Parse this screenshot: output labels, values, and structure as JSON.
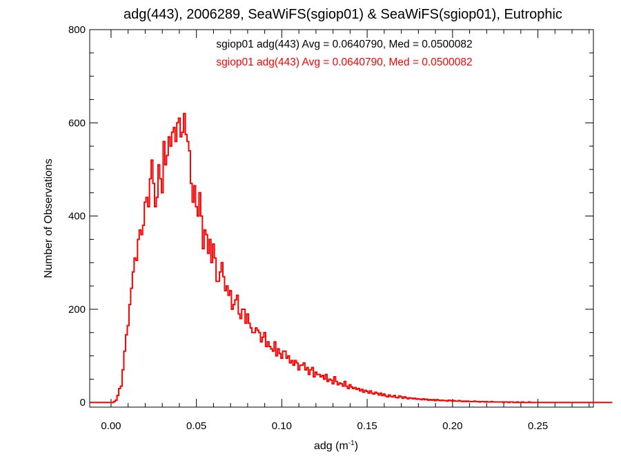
{
  "chart_data": {
    "type": "histogram",
    "title": "adg(443), 2006289, SeaWiFS(sgiop01) & SeaWiFS(sgiop01), Eutrophic",
    "xlabel": "adg (m",
    "xlabel_sup": "-1",
    "xlabel_end": ")",
    "ylabel": "Number of Observations",
    "xlim": [
      -0.0125,
      0.2825
    ],
    "ylim": [
      -10,
      800
    ],
    "xticks": [
      0.0,
      0.05,
      0.1,
      0.15,
      0.2,
      0.25
    ],
    "xtick_labels": [
      "0.00",
      "0.05",
      "0.10",
      "0.15",
      "0.20",
      "0.25"
    ],
    "yticks": [
      0,
      200,
      400,
      600,
      800
    ],
    "ytick_labels": [
      "0",
      "200",
      "400",
      "600",
      "800"
    ],
    "grid": false,
    "bin_width": 0.001,
    "x_start": -0.0125,
    "annotations": [
      {
        "text": "sgiop01 adg(443) Avg = 0.0640790, Med = 0.0500082",
        "color": "#000000"
      },
      {
        "text": "sgiop01 adg(443) Avg = 0.0640790, Med = 0.0500082",
        "color": "#ff0000"
      }
    ],
    "series": [
      {
        "color": "#000000",
        "values": [
          0,
          0,
          0,
          0,
          0,
          0,
          0,
          0,
          0,
          0,
          0,
          0,
          0,
          0,
          2,
          5,
          15,
          30,
          35,
          70,
          110,
          145,
          165,
          210,
          245,
          280,
          310,
          305,
          350,
          370,
          360,
          380,
          430,
          440,
          420,
          480,
          520,
          470,
          420,
          440,
          510,
          480,
          450,
          560,
          510,
          530,
          570,
          550,
          580,
          590,
          560,
          600,
          610,
          570,
          580,
          620,
          575,
          560,
          540,
          470,
          430,
          465,
          420,
          400,
          450,
          400,
          330,
          370,
          360,
          320,
          350,
          300,
          340,
          310,
          260,
          260,
          280,
          300,
          270,
          240,
          250,
          230,
          240,
          200,
          210,
          220,
          230,
          190,
          180,
          200,
          200,
          170,
          190,
          170,
          160,
          150,
          150,
          160,
          155,
          150,
          130,
          140,
          150,
          120,
          130,
          120,
          115,
          110,
          130,
          100,
          115,
          105,
          95,
          110,
          110,
          95,
          100,
          85,
          90,
          80,
          90,
          85,
          70,
          80,
          80,
          85,
          70,
          75,
          60,
          70,
          75,
          55,
          65,
          60,
          60,
          55,
          58,
          50,
          60,
          45,
          50,
          48,
          40,
          55,
          45,
          38,
          42,
          40,
          35,
          45,
          35,
          30,
          38,
          33,
          30,
          32,
          28,
          30,
          25,
          28,
          22,
          26,
          24,
          20,
          25,
          20,
          18,
          22,
          20,
          16,
          20,
          15,
          18,
          14,
          12,
          16,
          13,
          12,
          15,
          11,
          10,
          14,
          12,
          9,
          12,
          10,
          8,
          10,
          9,
          8,
          9,
          7,
          8,
          7,
          6,
          8,
          6,
          7,
          5,
          6,
          5,
          6,
          4,
          6,
          5,
          4,
          5,
          4,
          4,
          3,
          5,
          4,
          3,
          4,
          3,
          3,
          4,
          3,
          2,
          3,
          2,
          3,
          2,
          2,
          2,
          3,
          2,
          2,
          1,
          2,
          2,
          1,
          2,
          1,
          1,
          2,
          1,
          1,
          1,
          1,
          1,
          1,
          0,
          1,
          1,
          0,
          1,
          1,
          0,
          0,
          1,
          0,
          0,
          1,
          0,
          0,
          0,
          1,
          0,
          0,
          0,
          0,
          0,
          0,
          0,
          0,
          0,
          0,
          0,
          0,
          0,
          0,
          0,
          0,
          0,
          0,
          0,
          0,
          0,
          0,
          0,
          0,
          0,
          0,
          0,
          0,
          0,
          0,
          0,
          0,
          0,
          0,
          0,
          0,
          0,
          0,
          0,
          0,
          0,
          0,
          0,
          0,
          0,
          0,
          0,
          0
        ]
      },
      {
        "color": "#ff0000",
        "values": [
          0,
          0,
          0,
          0,
          0,
          0,
          0,
          0,
          0,
          0,
          0,
          0,
          0,
          0,
          2,
          5,
          15,
          30,
          35,
          70,
          110,
          145,
          165,
          210,
          245,
          280,
          310,
          305,
          350,
          370,
          360,
          380,
          430,
          440,
          420,
          480,
          520,
          470,
          420,
          440,
          510,
          480,
          450,
          560,
          510,
          530,
          570,
          550,
          580,
          590,
          560,
          600,
          610,
          570,
          580,
          620,
          575,
          560,
          540,
          470,
          430,
          465,
          420,
          400,
          450,
          400,
          330,
          370,
          360,
          320,
          350,
          300,
          340,
          310,
          260,
          260,
          280,
          300,
          270,
          240,
          250,
          230,
          240,
          200,
          210,
          220,
          230,
          190,
          180,
          200,
          200,
          170,
          190,
          170,
          160,
          150,
          150,
          160,
          155,
          150,
          130,
          140,
          150,
          120,
          130,
          120,
          115,
          110,
          130,
          100,
          115,
          105,
          95,
          110,
          110,
          95,
          100,
          85,
          90,
          80,
          90,
          85,
          70,
          80,
          80,
          85,
          70,
          75,
          60,
          70,
          75,
          55,
          65,
          60,
          60,
          55,
          58,
          50,
          60,
          45,
          50,
          48,
          40,
          55,
          45,
          38,
          42,
          40,
          35,
          45,
          35,
          30,
          38,
          33,
          30,
          32,
          28,
          30,
          25,
          28,
          22,
          26,
          24,
          20,
          25,
          20,
          18,
          22,
          20,
          16,
          20,
          15,
          18,
          14,
          12,
          16,
          13,
          12,
          15,
          11,
          10,
          14,
          12,
          9,
          12,
          10,
          8,
          10,
          9,
          8,
          9,
          7,
          8,
          7,
          6,
          8,
          6,
          7,
          5,
          6,
          5,
          6,
          4,
          6,
          5,
          4,
          5,
          4,
          4,
          3,
          5,
          4,
          3,
          4,
          3,
          3,
          4,
          3,
          2,
          3,
          2,
          3,
          2,
          2,
          2,
          3,
          2,
          2,
          1,
          2,
          2,
          1,
          2,
          1,
          1,
          2,
          1,
          1,
          1,
          1,
          1,
          1,
          0,
          1,
          1,
          0,
          1,
          1,
          0,
          0,
          1,
          0,
          0,
          1,
          0,
          0,
          0,
          1,
          0,
          0,
          0,
          0,
          0,
          0,
          0,
          0,
          0,
          0,
          0,
          0,
          0,
          0,
          0,
          0,
          0,
          0,
          0,
          0,
          0,
          0,
          0,
          0,
          0,
          0,
          0,
          0,
          0,
          0,
          0,
          0,
          0,
          0,
          0,
          0,
          0,
          0,
          0,
          0,
          0,
          0,
          0,
          0,
          0,
          0,
          0,
          0
        ]
      }
    ]
  }
}
